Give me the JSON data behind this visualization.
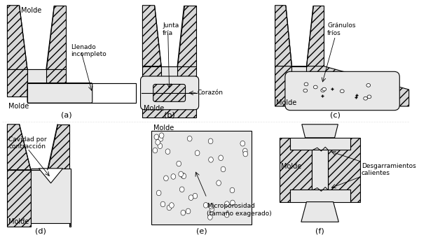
{
  "bg": "#ffffff",
  "mold_fc": "#d8d8d8",
  "mold_hatch": "///",
  "cast_fc": "#e8e8e8",
  "lw": 0.8,
  "panels": [
    "(a)",
    "(b)",
    "(c)",
    "(d)",
    "(e)",
    "(f)"
  ]
}
